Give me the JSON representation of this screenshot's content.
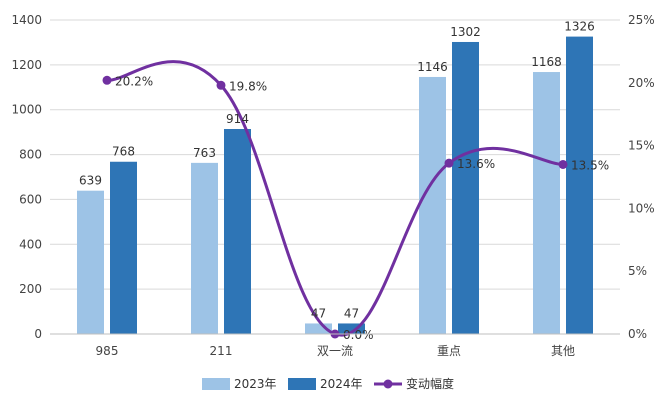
{
  "chart_data": {
    "type": "bar",
    "title": "",
    "xlabel": "",
    "ylabel": "",
    "categories": [
      "985",
      "211",
      "双一流",
      "重点",
      "其他"
    ],
    "ylim": [
      0,
      1400
    ],
    "y_ticks": [
      0,
      200,
      400,
      600,
      800,
      1000,
      1200,
      1400
    ],
    "y2lim": [
      0,
      25
    ],
    "y2_ticks": [
      0,
      5,
      10,
      15,
      20,
      25
    ],
    "y2_tick_suffix": "%",
    "grid": true,
    "legend_position": "bottom",
    "series": [
      {
        "name": "2023年",
        "type": "bar",
        "axis": "left",
        "color": "#9DC3E6",
        "values": [
          639,
          763,
          47,
          1146,
          1168
        ]
      },
      {
        "name": "2024年",
        "type": "bar",
        "axis": "left",
        "color": "#2E75B6",
        "values": [
          768,
          914,
          47,
          1302,
          1326
        ]
      },
      {
        "name": "变动幅度",
        "type": "line",
        "axis": "right",
        "color": "#7030A0",
        "values": [
          20.2,
          19.8,
          0.0,
          13.6,
          13.5
        ],
        "labels": [
          "20.2%",
          "19.8%",
          "0.0%",
          "13.6%",
          "13.5%"
        ]
      }
    ]
  }
}
